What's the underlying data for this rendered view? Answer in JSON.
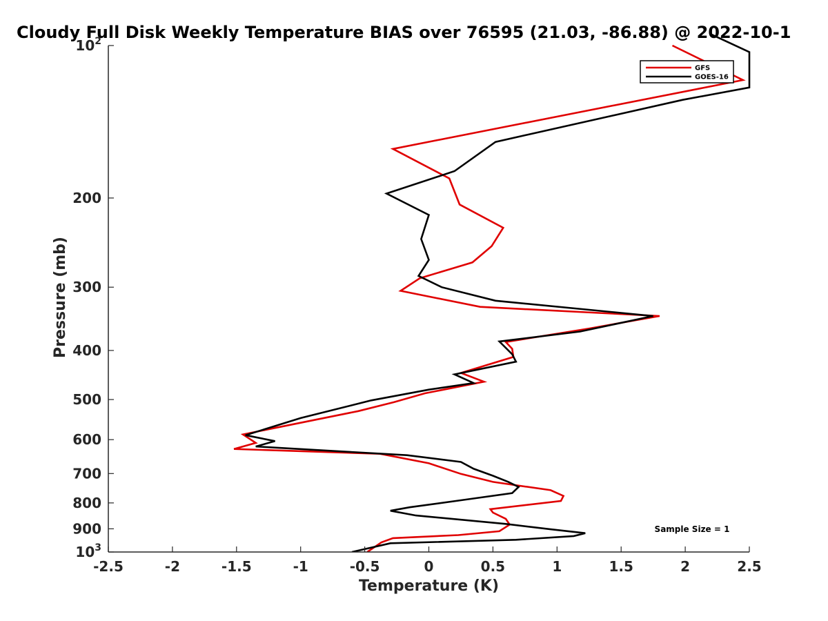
{
  "chart_data": {
    "type": "line",
    "title": "Cloudy Full Disk Weekly Temperature BIAS over 76595 (21.03, -86.88) @ 2022-10-1",
    "xlabel": "Temperature (K)",
    "ylabel": "Pressure (mb)",
    "xlim": [
      -2.5,
      2.5
    ],
    "ylim": [
      1000,
      100
    ],
    "y_scale": "log",
    "y_reversed": true,
    "x_ticks": [
      "-2.5",
      "-2",
      "-1.5",
      "-1",
      "-0.5",
      "0",
      "0.5",
      "1",
      "1.5",
      "2",
      "2.5"
    ],
    "y_ticks": [
      {
        "value": 100,
        "label": "10",
        "sup": "2"
      },
      {
        "value": 200,
        "label": "200",
        "sup": ""
      },
      {
        "value": 300,
        "label": "300",
        "sup": ""
      },
      {
        "value": 400,
        "label": "400",
        "sup": ""
      },
      {
        "value": 500,
        "label": "500",
        "sup": ""
      },
      {
        "value": 600,
        "label": "600",
        "sup": ""
      },
      {
        "value": 700,
        "label": "700",
        "sup": ""
      },
      {
        "value": 800,
        "label": "800",
        "sup": ""
      },
      {
        "value": 900,
        "label": "900",
        "sup": ""
      },
      {
        "value": 1000,
        "label": "10",
        "sup": "3"
      }
    ],
    "grid": false,
    "legend_position": "top-right",
    "annotation": "Sample Size = 1",
    "series": [
      {
        "name": "GFS",
        "color": "#e00000",
        "points": [
          [
            1.9,
            100
          ],
          [
            2.45,
            117
          ],
          [
            -0.28,
            160
          ],
          [
            0.16,
            183
          ],
          [
            0.24,
            206
          ],
          [
            0.58,
            229
          ],
          [
            0.49,
            249
          ],
          [
            0.34,
            268
          ],
          [
            -0.07,
            288
          ],
          [
            -0.22,
            305
          ],
          [
            0.4,
            328
          ],
          [
            1.8,
            342
          ],
          [
            1.25,
            362
          ],
          [
            0.6,
            385
          ],
          [
            0.65,
            397
          ],
          [
            0.66,
            412
          ],
          [
            0.25,
            443
          ],
          [
            0.43,
            461
          ],
          [
            -0.03,
            486
          ],
          [
            -0.27,
            506
          ],
          [
            -0.55,
            527
          ],
          [
            -1.45,
            586
          ],
          [
            -1.35,
            609
          ],
          [
            -1.52,
            626
          ],
          [
            -0.38,
            640
          ],
          [
            0.0,
            668
          ],
          [
            0.25,
            701
          ],
          [
            0.5,
            727
          ],
          [
            0.95,
            755
          ],
          [
            1.05,
            775
          ],
          [
            1.03,
            793
          ],
          [
            0.48,
            823
          ],
          [
            0.5,
            836
          ],
          [
            0.6,
            860
          ],
          [
            0.63,
            883
          ],
          [
            0.55,
            910
          ],
          [
            0.23,
            926
          ],
          [
            -0.28,
            939
          ],
          [
            -0.37,
            957
          ],
          [
            -0.48,
            1000
          ]
        ]
      },
      {
        "name": "GOES-16",
        "color": "#000000",
        "points": [
          [
            2.2,
            95
          ],
          [
            2.5,
            103
          ],
          [
            2.5,
            121
          ],
          [
            1.98,
            128
          ],
          [
            0.52,
            155
          ],
          [
            0.2,
            177
          ],
          [
            -0.33,
            196
          ],
          [
            0.0,
            216
          ],
          [
            -0.06,
            241
          ],
          [
            0.0,
            265
          ],
          [
            -0.08,
            285
          ],
          [
            0.1,
            300
          ],
          [
            0.52,
            319
          ],
          [
            1.75,
            342
          ],
          [
            1.18,
            367
          ],
          [
            0.55,
            384
          ],
          [
            0.65,
            407
          ],
          [
            0.68,
            421
          ],
          [
            0.2,
            446
          ],
          [
            0.35,
            464
          ],
          [
            0.0,
            478
          ],
          [
            -0.45,
            502
          ],
          [
            -1.0,
            544
          ],
          [
            -1.43,
            588
          ],
          [
            -1.2,
            604
          ],
          [
            -1.35,
            619
          ],
          [
            -0.17,
            644
          ],
          [
            0.25,
            664
          ],
          [
            0.35,
            685
          ],
          [
            0.5,
            707
          ],
          [
            0.62,
            727
          ],
          [
            0.7,
            744
          ],
          [
            0.65,
            765
          ],
          [
            0.27,
            789
          ],
          [
            -0.15,
            816
          ],
          [
            -0.3,
            829
          ],
          [
            -0.1,
            847
          ],
          [
            0.6,
            880
          ],
          [
            0.95,
            902
          ],
          [
            1.22,
            918
          ],
          [
            1.13,
            930
          ],
          [
            0.68,
            946
          ],
          [
            -0.3,
            961
          ],
          [
            -0.6,
            1000
          ]
        ]
      }
    ]
  }
}
